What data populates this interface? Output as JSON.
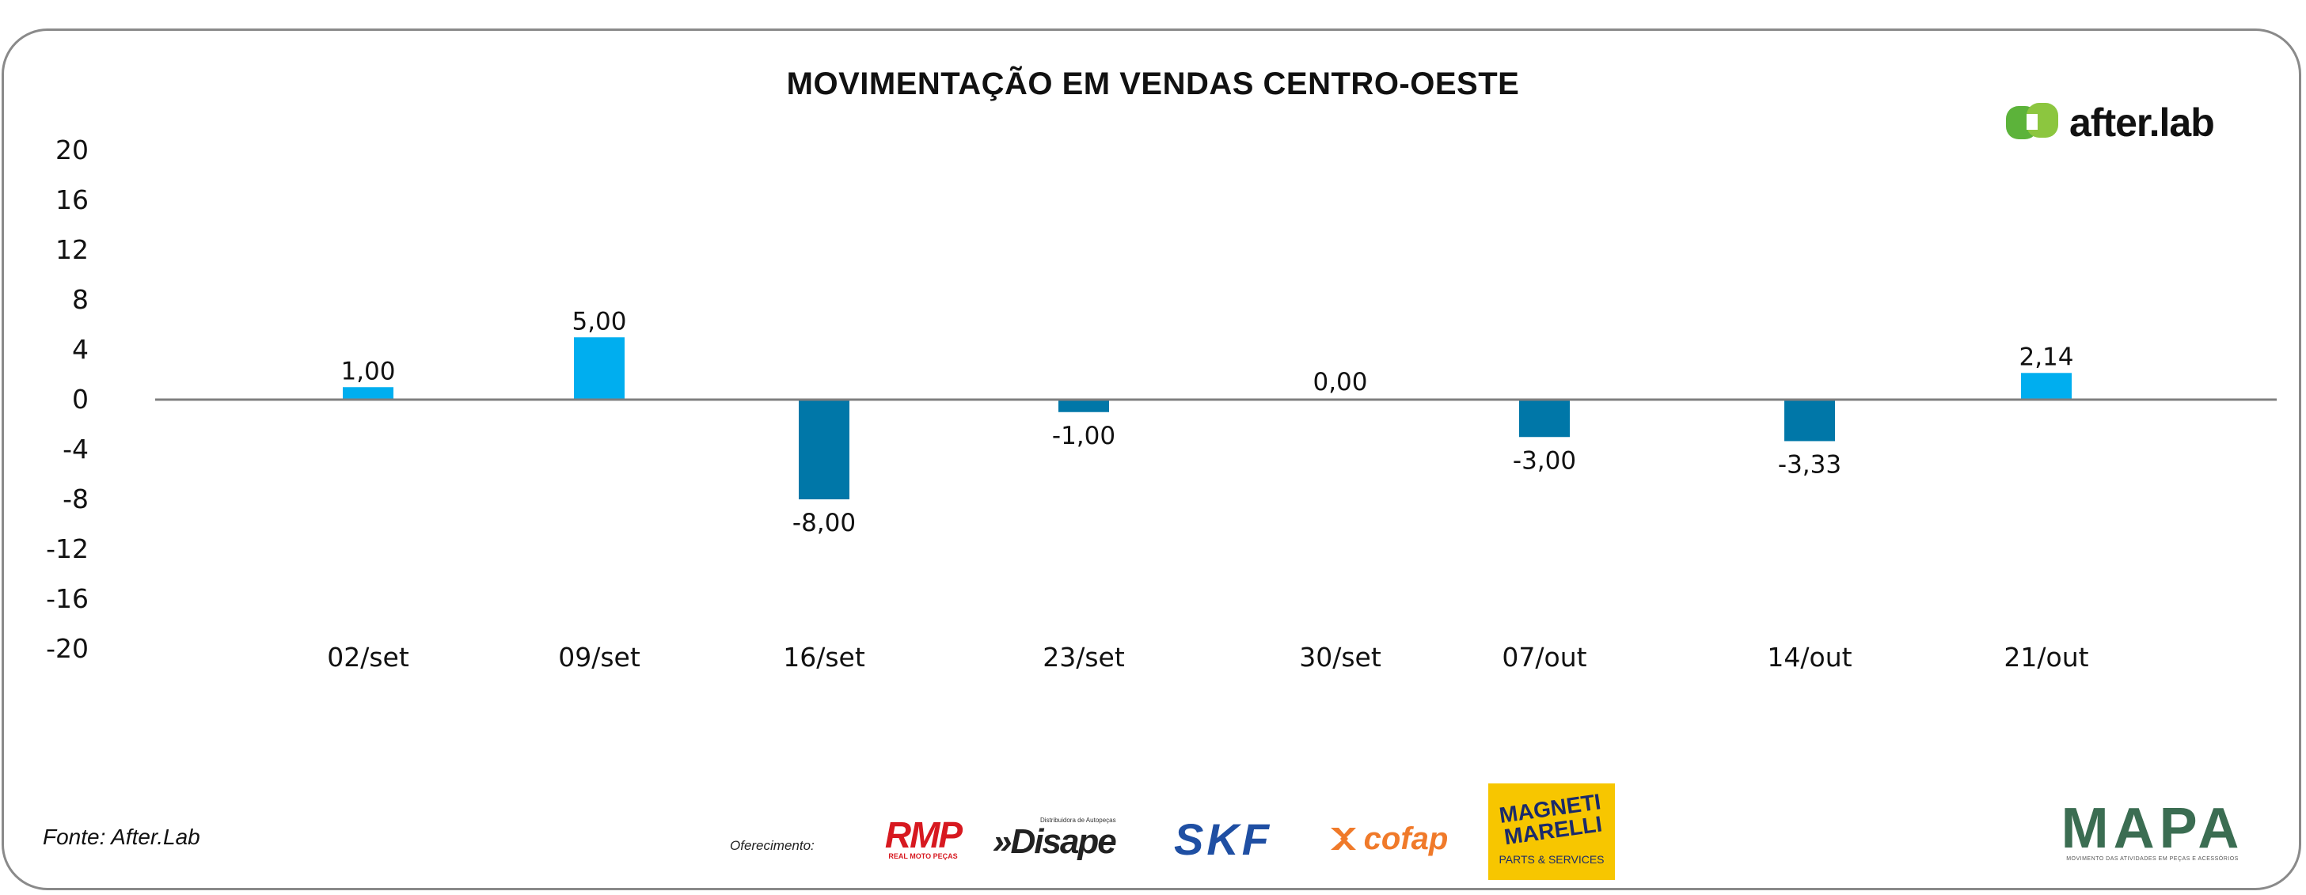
{
  "chart_data": {
    "type": "bar",
    "title": "MOVIMENTAÇÃO EM VENDAS CENTRO-OESTE",
    "categories": [
      "02/set",
      "09/set",
      "16/set",
      "23/set",
      "30/set",
      "07/out",
      "14/out",
      "21/out"
    ],
    "values": [
      1.0,
      5.0,
      -8.0,
      -1.0,
      0.0,
      -3.0,
      -3.33,
      2.14
    ],
    "value_labels": [
      "1,00",
      "5,00",
      "-8,00",
      "-1,00",
      "0,00",
      "-3,00",
      "-3,33",
      "2,14"
    ],
    "y_ticks": [
      20,
      16,
      12,
      8,
      4,
      0,
      -4,
      -8,
      -12,
      -16,
      -20
    ],
    "ylim": [
      -20,
      20
    ],
    "colors": {
      "positive": "#00aeef",
      "negative": "#0077a8",
      "axis": "#7f7f7f",
      "labels": "#111111"
    },
    "grid": false,
    "legend": "none"
  },
  "source": "Fonte: After.Lab",
  "sponsor_label": "Oferecimento:",
  "logos": {
    "afterlab": "after.lab",
    "rmp": "RMP",
    "rmp_sub": "REAL MOTO PEÇAS",
    "disape_top": "Distribuidora de Autopeças",
    "disape": "»Disape",
    "skf": "SKF",
    "cofap": "cofap",
    "magneti": "MAGNETI MARELLI",
    "magneti_sub": "PARTS & SERVICES",
    "mapa": "MAPA",
    "mapa_sub": "MOVIMENTO DAS ATIVIDADES EM PEÇAS E ACESSÓRIOS"
  }
}
